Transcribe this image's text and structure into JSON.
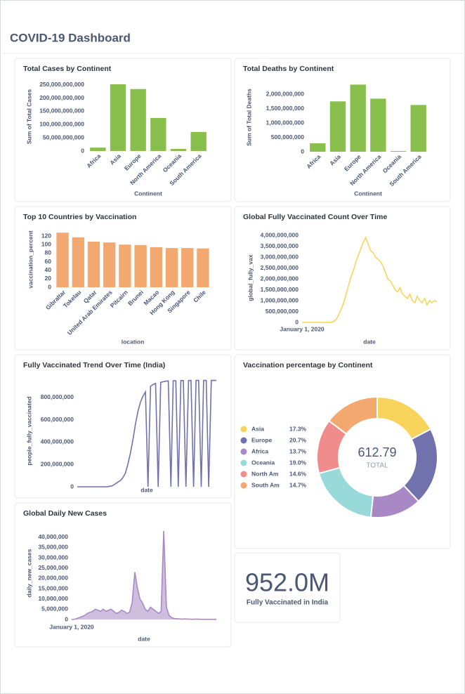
{
  "header": {
    "title": "COVID-19 Dashboard"
  },
  "kpi": {
    "value": "952.0M",
    "label": "Fully Vaccinated in India"
  },
  "chart_data": [
    {
      "type": "bar",
      "title": "Total Cases by Continent",
      "xlabel": "Continent",
      "ylabel": "Sum of Total Cases",
      "color": "#88bf4d",
      "categories": [
        "Africa",
        "Asia",
        "Europe",
        "North America",
        "Oceania",
        "South America"
      ],
      "values": [
        13000000000,
        252000000000,
        234000000000,
        125000000000,
        8000000000,
        72000000000
      ],
      "ylim": [
        0,
        260000000000
      ],
      "yticks": [
        0,
        {
          "value": 50000000000,
          "label": "50,000,000,000"
        },
        {
          "value": 100000000000,
          "label": "100,000,000,000"
        },
        {
          "value": 150000000000,
          "label": "150,000,000,000"
        },
        {
          "value": 200000000000,
          "label": "200,000,000,000"
        },
        {
          "value": 250000000000,
          "label": "250,000,000,000"
        }
      ]
    },
    {
      "type": "bar",
      "title": "Total Deaths by Continent",
      "xlabel": "Continent",
      "ylabel": "Sum of Total Deaths",
      "color": "#88bf4d",
      "categories": [
        "Africa",
        "Asia",
        "Europe",
        "North America",
        "Oceania",
        "South America"
      ],
      "values": [
        293000000,
        1756000000,
        2340000000,
        1850000000,
        24000000,
        1630000000
      ],
      "ylim": [
        0,
        2400000000
      ],
      "yticks": [
        0,
        {
          "value": 500000000,
          "label": "500,000,000"
        },
        {
          "value": 1000000000,
          "label": "1,000,000,000"
        },
        {
          "value": 1500000000,
          "label": "1,500,000,000"
        },
        {
          "value": 2000000000,
          "label": "2,000,000,000"
        }
      ]
    },
    {
      "type": "bar",
      "title": "Top 10 Countries by Vaccination",
      "xlabel": "location",
      "ylabel": "vaccination_percent",
      "color": "#f2a86f",
      "categories": [
        "Gibraltar",
        "Tokelau",
        "Qatar",
        "United Arab Emirates",
        "Pitcairn",
        "Brunei",
        "Macao",
        "Hong Kong",
        "Singapore",
        "Chile"
      ],
      "values": [
        128,
        117,
        107,
        105,
        100,
        99,
        94,
        92,
        92,
        91
      ],
      "ylim": [
        0,
        130
      ],
      "yticks": [
        0,
        20,
        40,
        60,
        80,
        100,
        120
      ]
    },
    {
      "type": "line",
      "title": "Global Fully Vaccinated Count Over Time",
      "xlabel": "date",
      "ylabel": "global_fully_vax",
      "color": "#f9d45c",
      "x": [
        "2020-01-01",
        "2020-02-01",
        "2020-03-01",
        "2020-04-01",
        "2020-05-01",
        "2020-06-01",
        "2020-07-01",
        "2020-08-01",
        "2020-09-01",
        "2020-10-01",
        "2020-11-01",
        "2020-12-01",
        "2021-01-01",
        "2021-02-01",
        "2021-03-01",
        "2021-04-01",
        "2021-05-01",
        "2021-06-01",
        "2021-07-01",
        "2021-08-01",
        "2021-09-01",
        "2021-10-01",
        "2021-11-01",
        "2021-12-01",
        "2022-01-01",
        "2022-02-01",
        "2022-03-01",
        "2022-04-01",
        "2022-05-01",
        "2022-06-01",
        "2022-07-01",
        "2022-08-01",
        "2022-09-01",
        "2022-10-01",
        "2022-11-01",
        "2022-12-01",
        "2023-01-01",
        "2023-02-01",
        "2023-03-01",
        "2023-04-01",
        "2023-05-01",
        "2023-06-01",
        "2023-07-01",
        "2023-08-01",
        "2023-09-01",
        "2023-10-01",
        "2023-11-01",
        "2023-12-01",
        "2024-01-01",
        "2024-02-01",
        "2024-03-01",
        "2024-04-01",
        "2024-05-01",
        "2024-06-01",
        "2024-07-01",
        "2024-08-01"
      ],
      "values": [
        0,
        0,
        0,
        0,
        0,
        0,
        0,
        0,
        0,
        0,
        0,
        0,
        10000000,
        50000000,
        150000000,
        350000000,
        600000000,
        900000000,
        1300000000,
        1700000000,
        2100000000,
        2400000000,
        2800000000,
        3100000000,
        3400000000,
        3700000000,
        3900000000,
        3600000000,
        3300000000,
        3200000000,
        3000000000,
        2900000000,
        2800000000,
        2600000000,
        2300000000,
        2000000000,
        1900000000,
        1700000000,
        1500000000,
        1400000000,
        1600000000,
        1300000000,
        1200000000,
        1100000000,
        1300000000,
        1000000000,
        900000000,
        1200000000,
        1000000000,
        900000000,
        1100000000,
        800000000,
        1000000000,
        900000000,
        1000000000,
        950000000
      ],
      "xlim": [
        "2020-01-01",
        "2024-08-01"
      ],
      "xticks": [
        {
          "value": "2020-01-01",
          "label": "January 1, 2020"
        }
      ],
      "ylim": [
        0,
        4100000000
      ],
      "yticks": [
        0,
        {
          "value": 500000000,
          "label": "500,000,000"
        },
        {
          "value": 1000000000,
          "label": "1,000,000,000"
        },
        {
          "value": 1500000000,
          "label": "1,500,000,000"
        },
        {
          "value": 2000000000,
          "label": "2,000,000,000"
        },
        {
          "value": 2500000000,
          "label": "2,500,000,000"
        },
        {
          "value": 3000000000,
          "label": "3,000,000,000"
        },
        {
          "value": 3500000000,
          "label": "3,500,000,000"
        },
        {
          "value": 4000000000,
          "label": "4,000,000,000"
        }
      ]
    },
    {
      "type": "line",
      "title": "Fully Vaccinated Trend Over Time (India)",
      "xlabel": "date",
      "ylabel": "people_fully_vaccinated",
      "color": "#7172ad",
      "x": [
        "2020-01-01",
        "2020-02-01",
        "2020-03-01",
        "2020-04-01",
        "2020-05-01",
        "2020-06-01",
        "2020-07-01",
        "2020-08-01",
        "2020-09-01",
        "2020-10-01",
        "2020-11-01",
        "2020-12-01",
        "2021-01-01",
        "2021-02-01",
        "2021-03-01",
        "2021-04-01",
        "2021-05-01",
        "2021-06-01",
        "2021-07-01",
        "2021-08-01",
        "2021-09-01",
        "2021-10-01",
        "2021-11-01",
        "2021-12-01",
        "2022-01-01",
        "2022-02-01",
        "2022-03-01",
        "2022-04-01",
        "2022-05-01",
        "2022-06-01",
        "2022-07-01",
        "2022-08-01",
        "2022-09-01",
        "2022-10-01",
        "2022-11-01",
        "2022-12-01",
        "2023-01-01",
        "2023-02-01",
        "2023-03-01",
        "2023-04-01",
        "2023-05-01",
        "2023-06-01",
        "2023-07-01",
        "2023-08-01",
        "2023-09-01",
        "2023-10-01",
        "2023-11-01",
        "2023-12-01",
        "2024-01-01",
        "2024-02-01",
        "2024-03-01",
        "2024-04-01",
        "2024-05-01",
        "2024-06-01",
        "2024-07-01",
        "2024-08-01"
      ],
      "values": [
        0,
        0,
        0,
        0,
        0,
        0,
        0,
        0,
        0,
        0,
        0,
        0,
        1000000,
        5000000,
        10000000,
        25000000,
        40000000,
        55000000,
        80000000,
        120000000,
        200000000,
        300000000,
        420000000,
        560000000,
        680000000,
        760000000,
        810000000,
        850000000,
        0,
        900000000,
        915000000,
        925000000,
        0,
        935000000,
        940000000,
        945000000,
        948000000,
        0,
        950000000,
        950000000,
        0,
        951000000,
        951000000,
        0,
        951000000,
        952000000,
        0,
        952000000,
        952000000,
        0,
        952000000,
        952000000,
        0,
        952000000,
        952000000,
        952000000
      ],
      "xlim": [
        "2020-01-01",
        "2024-08-01"
      ],
      "ylim": [
        0,
        1000000000
      ],
      "yticks": [
        0,
        {
          "value": 200000000,
          "label": "200,000,000"
        },
        {
          "value": 400000000,
          "label": "400,000,000"
        },
        {
          "value": 600000000,
          "label": "600,000,000"
        },
        {
          "value": 800000000,
          "label": "800,000,000"
        }
      ]
    },
    {
      "type": "area",
      "title": "Global Daily New Cases",
      "xlabel": "date",
      "ylabel": "daily_new_cases",
      "color": "#a989c5",
      "x": [
        "2020-01-01",
        "2020-02-01",
        "2020-03-01",
        "2020-04-01",
        "2020-05-01",
        "2020-06-01",
        "2020-07-01",
        "2020-08-01",
        "2020-09-01",
        "2020-10-01",
        "2020-11-01",
        "2020-12-01",
        "2021-01-01",
        "2021-02-01",
        "2021-03-01",
        "2021-04-01",
        "2021-05-01",
        "2021-06-01",
        "2021-07-01",
        "2021-08-01",
        "2021-09-01",
        "2021-10-01",
        "2021-11-01",
        "2021-12-01",
        "2022-01-01",
        "2022-02-01",
        "2022-03-01",
        "2022-04-01",
        "2022-05-01",
        "2022-06-01",
        "2022-07-01",
        "2022-08-01",
        "2022-09-01",
        "2022-10-01",
        "2022-11-01",
        "2022-12-01",
        "2023-01-01",
        "2023-02-01",
        "2023-03-01",
        "2023-04-01",
        "2023-05-01",
        "2023-06-01",
        "2023-07-01",
        "2023-08-01",
        "2023-09-01",
        "2023-10-01",
        "2023-11-01",
        "2023-12-01",
        "2024-01-01",
        "2024-02-01",
        "2024-03-01",
        "2024-04-01",
        "2024-05-01",
        "2024-06-01",
        "2024-07-01",
        "2024-08-01"
      ],
      "values": [
        0,
        100000,
        500000,
        1000000,
        1500000,
        2000000,
        3000000,
        3500000,
        4000000,
        5000000,
        4500000,
        4000000,
        5000000,
        4000000,
        4500000,
        5000000,
        4000000,
        3000000,
        3500000,
        4500000,
        4000000,
        3000000,
        3500000,
        8000000,
        23000000,
        15000000,
        10000000,
        8000000,
        5000000,
        4000000,
        6000000,
        5000000,
        4000000,
        3000000,
        4000000,
        43000000,
        6000000,
        2000000,
        1000000,
        500000,
        400000,
        300000,
        200000,
        300000,
        200000,
        200000,
        100000,
        200000,
        200000,
        100000,
        100000,
        100000,
        100000,
        100000,
        100000,
        100000
      ],
      "xlim": [
        "2020-01-01",
        "2024-08-01"
      ],
      "xticks": [
        {
          "value": "2020-01-01",
          "label": "January 1, 2020"
        }
      ],
      "ylim": [
        0,
        45000000
      ],
      "yticks": [
        0,
        {
          "value": 5000000,
          "label": "5,000,000"
        },
        {
          "value": 10000000,
          "label": "10,000,000"
        },
        {
          "value": 15000000,
          "label": "15,000,000"
        },
        {
          "value": 20000000,
          "label": "20,000,000"
        },
        {
          "value": 25000000,
          "label": "25,000,000"
        },
        {
          "value": 30000000,
          "label": "30,000,000"
        },
        {
          "value": 35000000,
          "label": "35,000,000"
        },
        {
          "value": 40000000,
          "label": "40,000,000"
        }
      ]
    },
    {
      "type": "donut",
      "title": "Vaccination percentage by Continent",
      "categories": [
        "Asia",
        "Europe",
        "Africa",
        "Oceania",
        "North Am",
        "South Am"
      ],
      "values": [
        17.3,
        20.7,
        13.7,
        19.0,
        14.6,
        14.7
      ],
      "value_labels": [
        "17.3%",
        "20.7%",
        "13.7%",
        "19.0%",
        "14.6%",
        "14.7%"
      ],
      "colors": [
        "#f9d45c",
        "#7172ad",
        "#a989c5",
        "#98d9d9",
        "#f08c8c",
        "#f2a86f"
      ],
      "total": 612.79,
      "total_label": "TOTAL"
    }
  ]
}
